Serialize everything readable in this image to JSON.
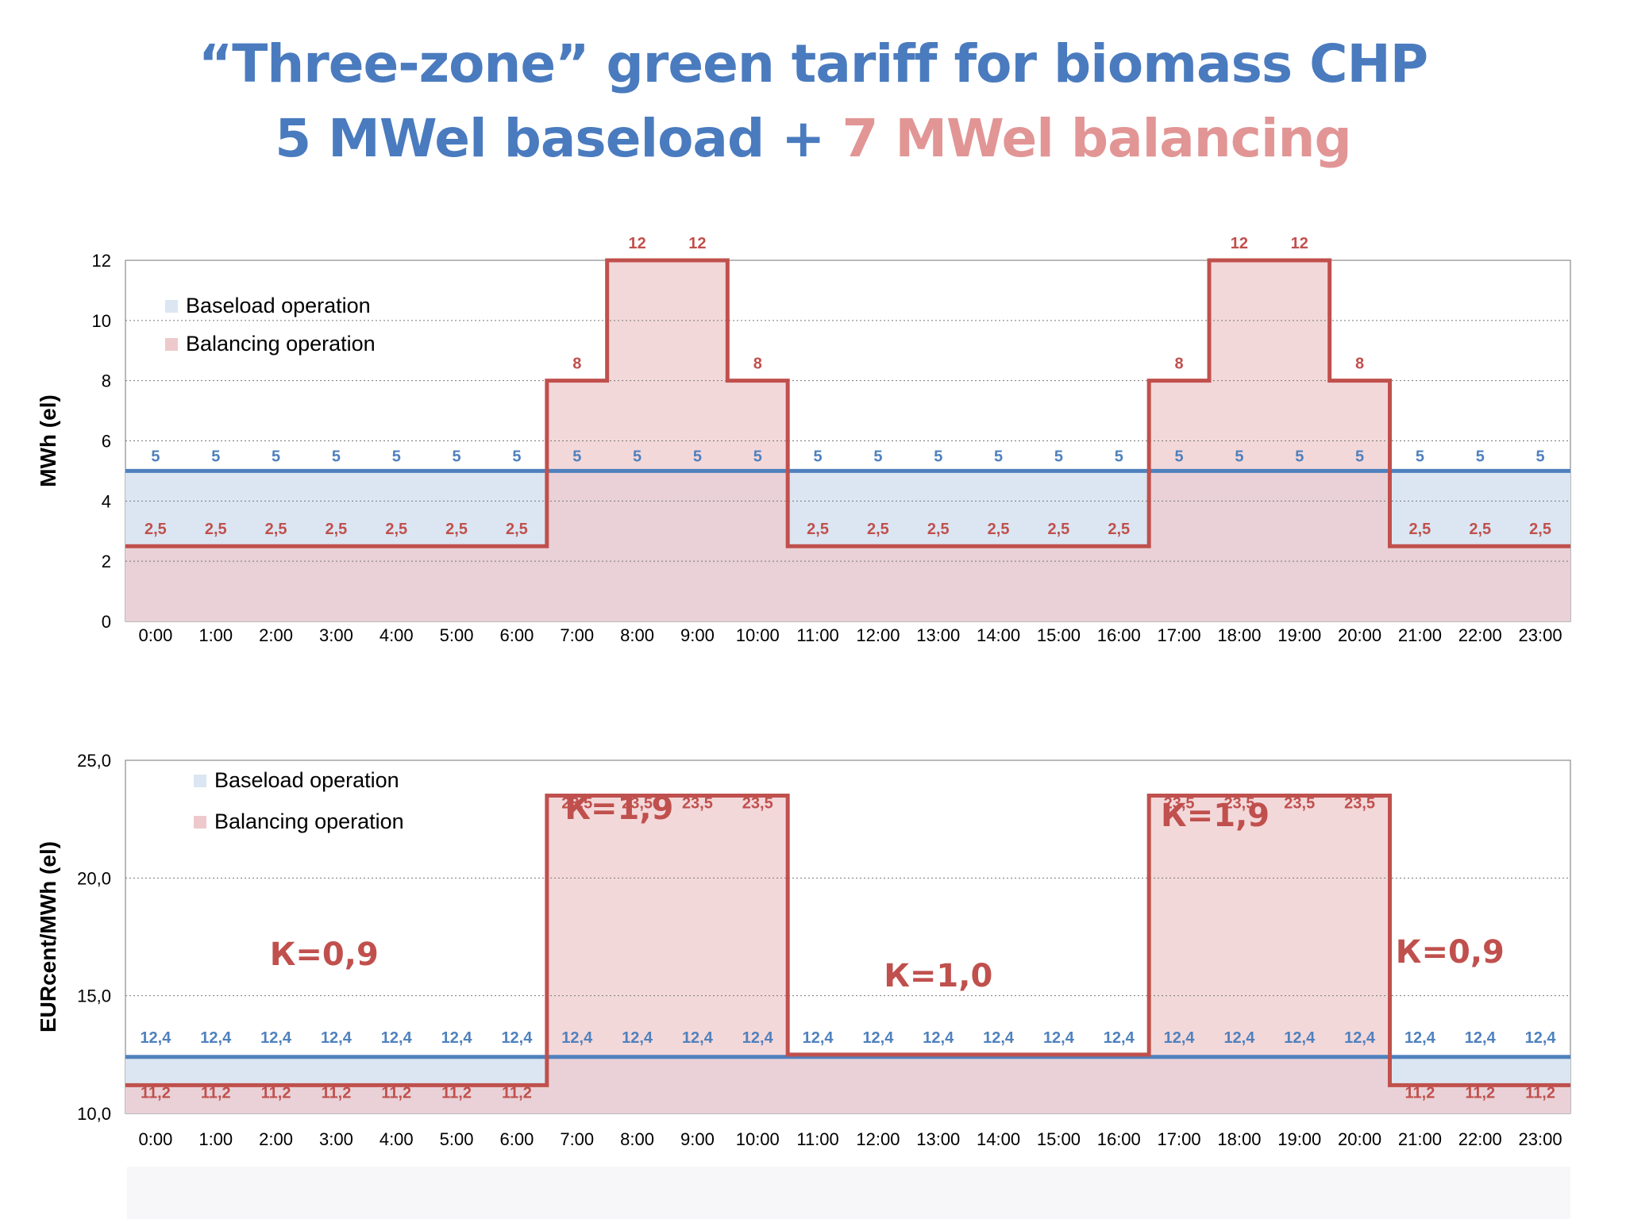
{
  "title": {
    "line1": "“Three-zone” green tariff for biomass CHP",
    "line2a": "5 MWel baseload + ",
    "line2b": "7 MWel balancing"
  },
  "colors": {
    "title_blue": "#4a7bbf",
    "title_pink": "#e29595",
    "baseload_line": "#4f81bd",
    "balancing_line": "#c0504d",
    "baseload_fill": "#dbe6f2",
    "balancing_fill": "#eec9cc",
    "overlap_fill": "#d3bdc8"
  },
  "chart_data": [
    {
      "type": "area",
      "ylabel": "MWh (el)",
      "ylim": [
        0,
        12
      ],
      "yticks": [
        "0",
        "2",
        "4",
        "6",
        "8",
        "10",
        "12"
      ],
      "categories": [
        "0:00",
        "1:00",
        "2:00",
        "3:00",
        "4:00",
        "5:00",
        "6:00",
        "7:00",
        "8:00",
        "9:00",
        "10:00",
        "11:00",
        "12:00",
        "13:00",
        "14:00",
        "15:00",
        "16:00",
        "17:00",
        "18:00",
        "19:00",
        "20:00",
        "21:00",
        "22:00",
        "23:00"
      ],
      "legend": [
        "Baseload operation",
        "Balancing operation"
      ],
      "legend_position": "top-left",
      "series": [
        {
          "name": "Baseload operation",
          "values": [
            5,
            5,
            5,
            5,
            5,
            5,
            5,
            5,
            5,
            5,
            5,
            5,
            5,
            5,
            5,
            5,
            5,
            5,
            5,
            5,
            5,
            5,
            5,
            5
          ]
        },
        {
          "name": "Balancing operation",
          "values": [
            2.5,
            2.5,
            2.5,
            2.5,
            2.5,
            2.5,
            2.5,
            8,
            12,
            12,
            8,
            2.5,
            2.5,
            2.5,
            2.5,
            2.5,
            2.5,
            8,
            12,
            12,
            8,
            2.5,
            2.5,
            2.5
          ]
        }
      ],
      "baseload_labels": [
        "5",
        "5",
        "5",
        "5",
        "5",
        "5",
        "5",
        "5",
        "5",
        "5",
        "5",
        "5",
        "5",
        "5",
        "5",
        "5",
        "5",
        "5",
        "5",
        "5",
        "5",
        "5",
        "5",
        "5"
      ],
      "balancing_labels": [
        "2,5",
        "2,5",
        "2,5",
        "2,5",
        "2,5",
        "2,5",
        "2,5",
        "8",
        "12",
        "12",
        "8",
        "2,5",
        "2,5",
        "2,5",
        "2,5",
        "2,5",
        "2,5",
        "8",
        "12",
        "12",
        "8",
        "2,5",
        "2,5",
        "2,5"
      ],
      "grid": true
    },
    {
      "type": "area",
      "ylabel": "EURcent/MWh (el)",
      "ylim": [
        10,
        25
      ],
      "yticks": [
        "10,0",
        "15,0",
        "20,0",
        "25,0"
      ],
      "categories": [
        "0:00",
        "1:00",
        "2:00",
        "3:00",
        "4:00",
        "5:00",
        "6:00",
        "7:00",
        "8:00",
        "9:00",
        "10:00",
        "11:00",
        "12:00",
        "13:00",
        "14:00",
        "15:00",
        "16:00",
        "17:00",
        "18:00",
        "19:00",
        "20:00",
        "21:00",
        "22:00",
        "23:00"
      ],
      "legend": [
        "Baseload operation",
        "Balancing operation"
      ],
      "legend_position": "top-left",
      "series": [
        {
          "name": "Baseload operation",
          "values": [
            12.4,
            12.4,
            12.4,
            12.4,
            12.4,
            12.4,
            12.4,
            12.4,
            12.4,
            12.4,
            12.4,
            12.4,
            12.4,
            12.4,
            12.4,
            12.4,
            12.4,
            12.4,
            12.4,
            12.4,
            12.4,
            12.4,
            12.4,
            12.4
          ]
        },
        {
          "name": "Balancing operation",
          "values": [
            11.2,
            11.2,
            11.2,
            11.2,
            11.2,
            11.2,
            11.2,
            23.5,
            23.5,
            23.5,
            23.5,
            12.5,
            12.5,
            12.5,
            12.5,
            12.5,
            12.5,
            23.5,
            23.5,
            23.5,
            23.5,
            11.2,
            11.2,
            11.2
          ]
        }
      ],
      "baseload_labels": [
        "12,4",
        "12,4",
        "12,4",
        "12,4",
        "12,4",
        "12,4",
        "12,4",
        "12,4",
        "12,4",
        "12,4",
        "12,4",
        "12,4",
        "12,4",
        "12,4",
        "12,4",
        "12,4",
        "12,4",
        "12,4",
        "12,4",
        "12,4",
        "12,4",
        "12,4",
        "12,4",
        "12,4"
      ],
      "balancing_labels": [
        "11,2",
        "11,2",
        "11,2",
        "11,2",
        "11,2",
        "11,2",
        "11,2",
        "23,5",
        "23,5",
        "23,5",
        "23,5",
        "",
        "",
        "",
        "",
        "",
        "",
        "23,5",
        "23,5",
        "23,5",
        "23,5",
        "11,2",
        "11,2",
        "11,2"
      ],
      "annotations": [
        {
          "text": "К=0,9",
          "at_category": 3.3,
          "at_value": 16.3
        },
        {
          "text": "К=1,9",
          "at_category": 8.2,
          "at_value": 22.5
        },
        {
          "text": "К=1,0",
          "at_category": 13.5,
          "at_value": 15.4
        },
        {
          "text": "К=1,9",
          "at_category": 18.1,
          "at_value": 22.2
        },
        {
          "text": "К=0,9",
          "at_category": 22.0,
          "at_value": 16.4
        }
      ],
      "grid": true
    }
  ]
}
